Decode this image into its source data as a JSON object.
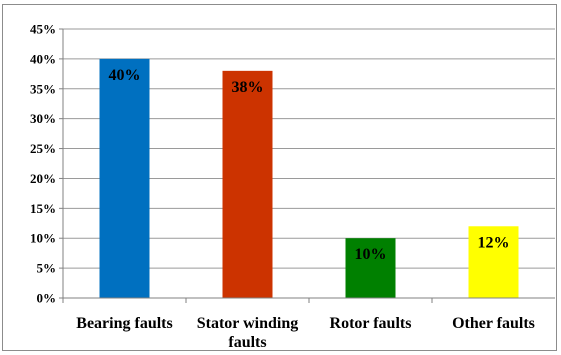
{
  "chart_data": {
    "type": "bar",
    "title": "",
    "xlabel": "",
    "ylabel": "",
    "categories": [
      [
        "Bearing faults"
      ],
      [
        "Stator winding",
        "faults"
      ],
      [
        "Rotor faults"
      ],
      [
        "Other faults"
      ]
    ],
    "values": [
      40,
      38,
      10,
      12
    ],
    "data_labels": [
      "40%",
      "38%",
      "10%",
      "12%"
    ],
    "colors": [
      "#0070c0",
      "#cc3300",
      "#008000",
      "#ffff00"
    ],
    "ylim": [
      0,
      45
    ],
    "ytick_step": 5,
    "ytick_labels": [
      "0%",
      "5%",
      "10%",
      "15%",
      "20%",
      "25%",
      "30%",
      "35%",
      "40%",
      "45%"
    ],
    "grid": true,
    "legend": "none"
  }
}
